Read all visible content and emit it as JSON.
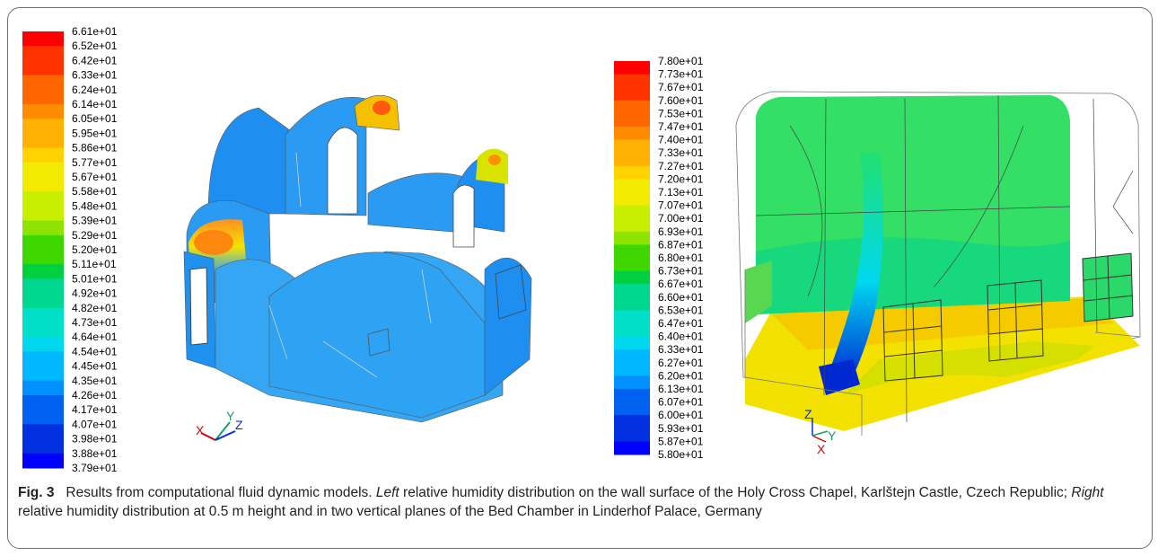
{
  "figure": {
    "left_panel": {
      "colorbar_labels": [
        "6.61e+01",
        "6.52e+01",
        "6.42e+01",
        "6.33e+01",
        "6.24e+01",
        "6.14e+01",
        "6.05e+01",
        "5.95e+01",
        "5.86e+01",
        "5.77e+01",
        "5.67e+01",
        "5.58e+01",
        "5.48e+01",
        "5.39e+01",
        "5.29e+01",
        "5.20e+01",
        "5.11e+01",
        "5.01e+01",
        "4.92e+01",
        "4.82e+01",
        "4.73e+01",
        "4.64e+01",
        "4.54e+01",
        "4.45e+01",
        "4.35e+01",
        "4.26e+01",
        "4.17e+01",
        "4.07e+01",
        "3.98e+01",
        "3.88e+01",
        "3.79e+01"
      ],
      "axes": {
        "x": "X",
        "y": "Y",
        "z": "Z"
      }
    },
    "right_panel": {
      "colorbar_labels": [
        "7.80e+01",
        "7.73e+01",
        "7.67e+01",
        "7.60e+01",
        "7.53e+01",
        "7.47e+01",
        "7.40e+01",
        "7.33e+01",
        "7.27e+01",
        "7.20e+01",
        "7.13e+01",
        "7.07e+01",
        "7.00e+01",
        "6.93e+01",
        "6.87e+01",
        "6.80e+01",
        "6.73e+01",
        "6.67e+01",
        "6.60e+01",
        "6.53e+01",
        "6.47e+01",
        "6.40e+01",
        "6.33e+01",
        "6.27e+01",
        "6.20e+01",
        "6.13e+01",
        "6.07e+01",
        "6.00e+01",
        "5.93e+01",
        "5.87e+01",
        "5.80e+01"
      ],
      "axes": {
        "x": "X",
        "y": "Y",
        "z": "Z"
      }
    },
    "colormap": [
      "#ff0000",
      "#ff3300",
      "#ff6600",
      "#ff8c00",
      "#ffb000",
      "#ffd200",
      "#f2ea00",
      "#c8ee00",
      "#8ee400",
      "#3ed800",
      "#00d040",
      "#00d890",
      "#00e0c8",
      "#00d8f0",
      "#00b8ff",
      "#0090ff",
      "#0060f0",
      "#0030e0",
      "#0000ff"
    ]
  },
  "caption": {
    "label": "Fig. 3",
    "text_1": "Results from computational fluid dynamic models. ",
    "left_word": "Left",
    "text_2": " relative humidity distribution on the wall surface of the Holy Cross Chapel, Karlštejn Castle, Czech Republic; ",
    "right_word": "Right",
    "text_3": " relative humidity distribution at 0.5 m height and in two vertical planes of the Bed Chamber in Linderhof Palace, Germany"
  }
}
